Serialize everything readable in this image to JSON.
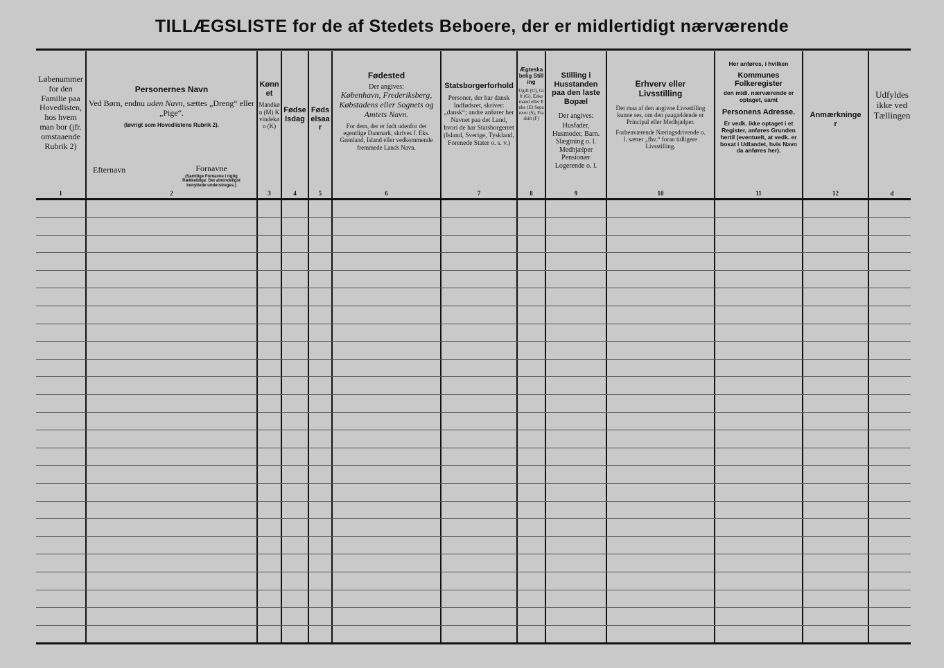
{
  "title": "TILLÆGSLISTE for de af Stedets Beboere, der er midlertidigt nærværende",
  "columns": [
    {
      "body": "Løbenummer for den Familie paa Hovedlisten, hos hvem man bor (jfr. omstaaende Rubrik 2)",
      "num": "1"
    },
    {
      "title": "Personernes Navn",
      "body1a": "Ved Børn, endnu ",
      "body1i": "uden Navn",
      "body1b": ", sættes „Dreng“ eller „Pige“.",
      "body2": "(Iøvrigt som Hovedlistens Rubrik 2).",
      "sub1": "Efternavn",
      "sub2": "Fornavne",
      "note": "(Samtlige Fornavne i rigtig Rækkefølge. Det almindeligst benyttede understreges.)",
      "num": "2"
    },
    {
      "title": "Kønnet",
      "body": "Mandkøn (M) Kvindekøn (K)",
      "num": "3"
    },
    {
      "title": "Fødselsdag",
      "num": "4"
    },
    {
      "title": "Fødselsaar",
      "num": "5"
    },
    {
      "title": "Fødested",
      "body1": "Der angives:",
      "body2i": "København, Frederiksberg, Købstadens eller Sognets og Amtets Navn.",
      "body3": "For dem, der er født udenfor det egentlige Danmark, skrives f. Eks. Grønland, Island eller vedkommende fremmede Lands Navn.",
      "num": "6"
    },
    {
      "title": "Statsborgerforhold",
      "body": "Personer, der har dansk Indfødsret, skriver: „dansk“; andre anfører her Navnet paa det Land, hvori de har Statsborgerret (Island, Sverige, Tyskland, Forenede Stater o. s. v.)",
      "num": "7"
    },
    {
      "title": "Ægteskabelig Stilling",
      "body": "Ugift (U), Gift (G), Enkemand eller Enke (E) Separeret (S), Fraskilt (F)",
      "num": "8"
    },
    {
      "title": "Stilling i Husstanden paa den laste Bopæl",
      "body1": "Der angives:",
      "body2": "Husfader, Husmoder, Barn. Slægtning o. l. Medhjælper Pensionær Logerende o. l.",
      "num": "9"
    },
    {
      "title": "Erhverv eller Livsstilling",
      "body1": "Det maa af den angivne Livsstilling kunne ses, om den paagældende er Principal eller Medhjælper.",
      "body2": "Forhenværende Næringsdrivende o. l. sætter „fhv.“ foran tidligere Livsstilling.",
      "num": "10"
    },
    {
      "pre": "Her anføres, i hvilken",
      "title": "Kommunes Folkeregister",
      "body1": "den midl. nærværende er optaget, samt",
      "title2": "Personens Adresse.",
      "body2": "Er vedk. ikke optaget i et Register, anføres Grunden hertil (eventuelt, at vedk. er bosat i Udlandet, hvis Navn da anføres her).",
      "num": "11"
    },
    {
      "title": "Anmærkninger",
      "num": "12"
    },
    {
      "body": "Udfyldes ikke ved Tællingen",
      "num": "d"
    }
  ]
}
